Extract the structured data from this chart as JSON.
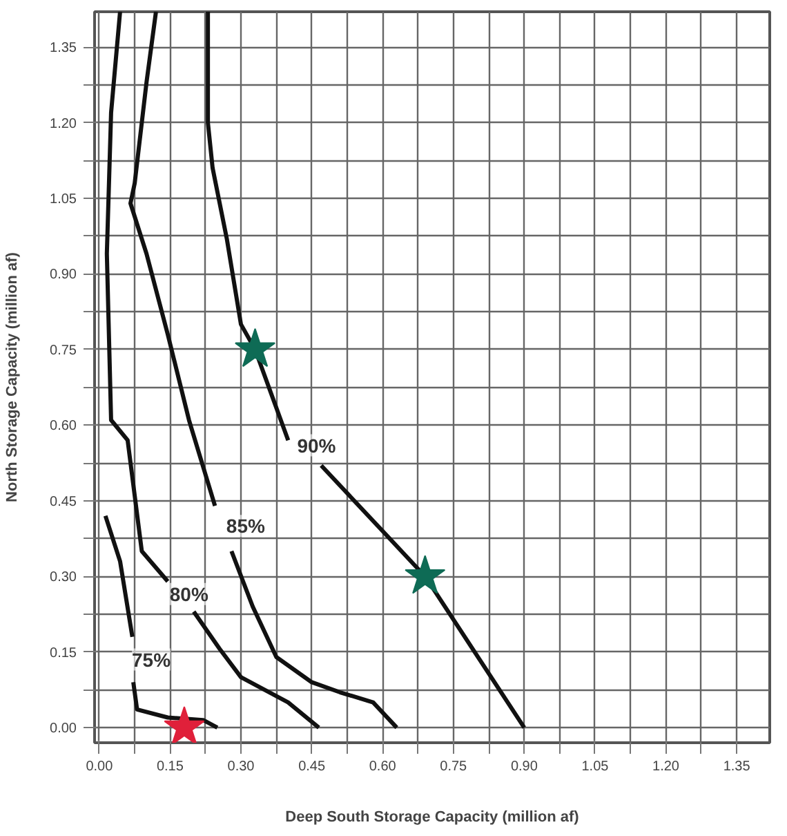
{
  "chart_data": {
    "type": "line",
    "xlabel": "Deep South Storage Capacity (million af)",
    "ylabel": "North Storage Capacity (million af)",
    "xlim": [
      -0.01,
      1.42
    ],
    "ylim": [
      -0.03,
      1.42
    ],
    "xticks": [
      {
        "value": 0,
        "label": "0.00"
      },
      {
        "value": 0.15,
        "label": "0.15"
      },
      {
        "value": 0.3,
        "label": "0.30"
      },
      {
        "value": 0.45,
        "label": "0.45"
      },
      {
        "value": 0.6,
        "label": "0.60"
      },
      {
        "value": 0.75,
        "label": "0.75"
      },
      {
        "value": 0.9,
        "label": "0.90"
      },
      {
        "value": 1.05,
        "label": "1.05"
      },
      {
        "value": 1.2,
        "label": "1.20"
      },
      {
        "value": 1.35,
        "label": "1.35"
      }
    ],
    "yticks": [
      {
        "value": 0,
        "label": "0.00"
      },
      {
        "value": 0.15,
        "label": "0.15"
      },
      {
        "value": 0.3,
        "label": "0.30"
      },
      {
        "value": 0.45,
        "label": "0.45"
      },
      {
        "value": 0.6,
        "label": "0.60"
      },
      {
        "value": 0.75,
        "label": "0.75"
      },
      {
        "value": 0.9,
        "label": "0.90"
      },
      {
        "value": 1.05,
        "label": "1.05"
      },
      {
        "value": 1.2,
        "label": "1.20"
      },
      {
        "value": 1.35,
        "label": "1.35"
      }
    ],
    "grid": true,
    "series": [
      {
        "color": "#111111",
        "x": [
          0.013,
          0.044,
          0.07
        ],
        "values": [
          0.42,
          0.33,
          0.18
        ]
      },
      {
        "color": "#111111",
        "x": [
          0.072,
          0.08,
          0.145,
          0.22,
          0.25
        ],
        "values": [
          0.09,
          0.036,
          0.02,
          0.015,
          0.0
        ]
      },
      {
        "color": "#111111",
        "x": [
          0.044,
          0.025,
          0.016,
          0.025,
          0.06,
          0.09,
          0.145
        ],
        "values": [
          1.42,
          1.22,
          0.94,
          0.61,
          0.57,
          0.35,
          0.29
        ]
      },
      {
        "color": "#111111",
        "x": [
          0.2,
          0.255,
          0.3,
          0.4,
          0.465
        ],
        "values": [
          0.23,
          0.156,
          0.1,
          0.05,
          0.0
        ]
      },
      {
        "color": "#111111",
        "x": [
          0.12,
          0.1,
          0.075,
          0.066,
          0.1,
          0.145,
          0.19,
          0.245
        ],
        "values": [
          1.42,
          1.28,
          1.08,
          1.04,
          0.94,
          0.78,
          0.61,
          0.44
        ]
      },
      {
        "color": "#111111",
        "x": [
          0.28,
          0.325,
          0.375,
          0.45,
          0.51,
          0.58,
          0.63
        ],
        "values": [
          0.35,
          0.24,
          0.14,
          0.09,
          0.07,
          0.05,
          0.0
        ]
      },
      {
        "color": "#111111",
        "x": [
          0.23,
          0.23,
          0.24,
          0.27,
          0.3,
          0.33,
          0.4
        ],
        "values": [
          1.42,
          1.2,
          1.11,
          0.97,
          0.8,
          0.75,
          0.57
        ]
      },
      {
        "color": "#111111",
        "x": [
          0.47,
          0.69,
          0.9
        ],
        "values": [
          0.52,
          0.3,
          0.0
        ]
      },
      {
        "type": "scatter",
        "marker": "star",
        "colors": [
          "#0e6b55",
          "#0e6b55",
          "#e0203a"
        ],
        "x": [
          0.33,
          0.69,
          0.18
        ],
        "values": [
          0.75,
          0.3,
          0.0
        ]
      }
    ],
    "annotations": [
      {
        "text": "75%",
        "x": 0.11,
        "y": 0.135
      },
      {
        "text": "80%",
        "x": 0.19,
        "y": 0.265
      },
      {
        "text": "85%",
        "x": 0.31,
        "y": 0.4
      },
      {
        "text": "90%",
        "x": 0.46,
        "y": 0.56
      }
    ]
  }
}
